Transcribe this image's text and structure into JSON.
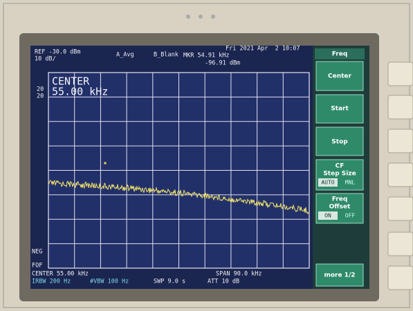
{
  "header": {
    "ref": "REF -30.0 dBm",
    "scale": "10 dB/",
    "trace_a": "A_Avg",
    "trace_b": "B_Blank",
    "marker_freq": "MKR 54.91 kHz",
    "marker_level": "-96.91 dBm",
    "datetime": "Fri 2021 Apr  2 10:07"
  },
  "overlay": {
    "title": "CENTER",
    "value": "55.00 kHz",
    "left_top": "20",
    "left_bottom": "20",
    "neg": "NEG",
    "fof": "FOF"
  },
  "footer": {
    "center": "CENTER 55.00 kHz",
    "span": "SPAN 90.0 kHz",
    "rbw": "IRBW 200 Hz",
    "vbw": "#VBW 100 Hz",
    "sweep": "SWP 9.0 s",
    "attenuation": "ATT 10 dB"
  },
  "softkeys": {
    "menu": "Freq",
    "center": "Center",
    "start": "Start",
    "stop": "Stop",
    "step": {
      "lines": [
        "CF",
        "Step Size"
      ],
      "auto": "AUTO",
      "manual": "MNL"
    },
    "offset": {
      "lines": [
        "Freq",
        "Offset"
      ],
      "on": "ON",
      "off": "OFF"
    },
    "more": "more 1/2"
  }
}
